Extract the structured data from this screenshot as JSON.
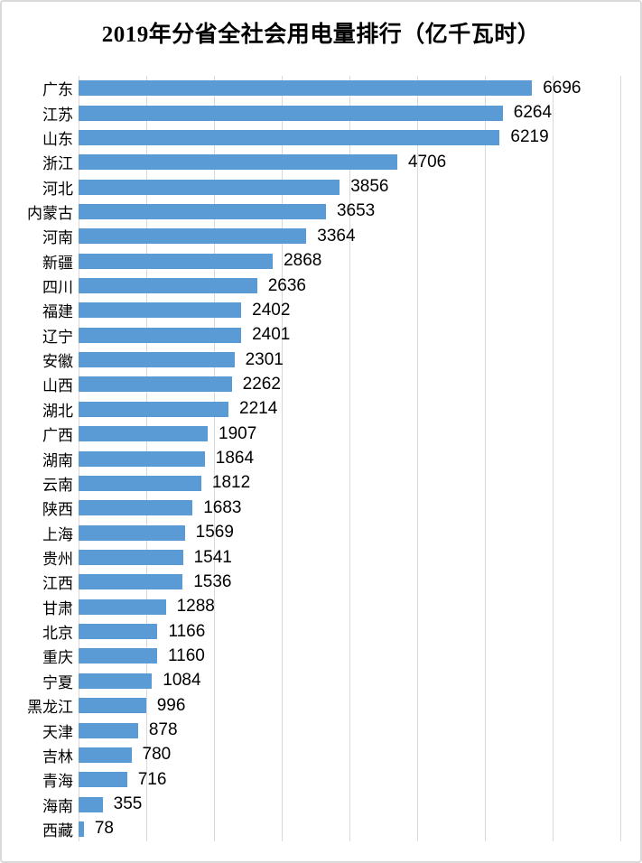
{
  "frame": {
    "background": "#FFFFFF",
    "border_color": "#D9D9D9"
  },
  "chart_data": {
    "type": "bar",
    "orientation": "horizontal",
    "title": "2019年分省全社会用电量排行（亿千瓦时）",
    "xlabel": "",
    "ylabel": "",
    "categories": [
      "广东",
      "江苏",
      "山东",
      "浙江",
      "河北",
      "内蒙古",
      "河南",
      "新疆",
      "四川",
      "福建",
      "辽宁",
      "安徽",
      "山西",
      "湖北",
      "广西",
      "湖南",
      "云南",
      "陕西",
      "上海",
      "贵州",
      "江西",
      "甘肃",
      "北京",
      "重庆",
      "宁夏",
      "黑龙江",
      "天津",
      "吉林",
      "青海",
      "海南",
      "西藏"
    ],
    "values": [
      6696,
      6264,
      6219,
      4706,
      3856,
      3653,
      3364,
      2868,
      2636,
      2402,
      2401,
      2301,
      2262,
      2214,
      1907,
      1864,
      1812,
      1683,
      1569,
      1541,
      1536,
      1288,
      1166,
      1160,
      1084,
      996,
      878,
      780,
      716,
      355,
      78
    ],
    "xlim": [
      0,
      8000
    ],
    "gridline_interval": 1000,
    "grid": "vertical-only",
    "legend": "none",
    "value_labels": "end-of-bar",
    "bar_color": "#5B9BD5",
    "gridline_color": "#D9D9D9",
    "text_color": "#000000"
  }
}
